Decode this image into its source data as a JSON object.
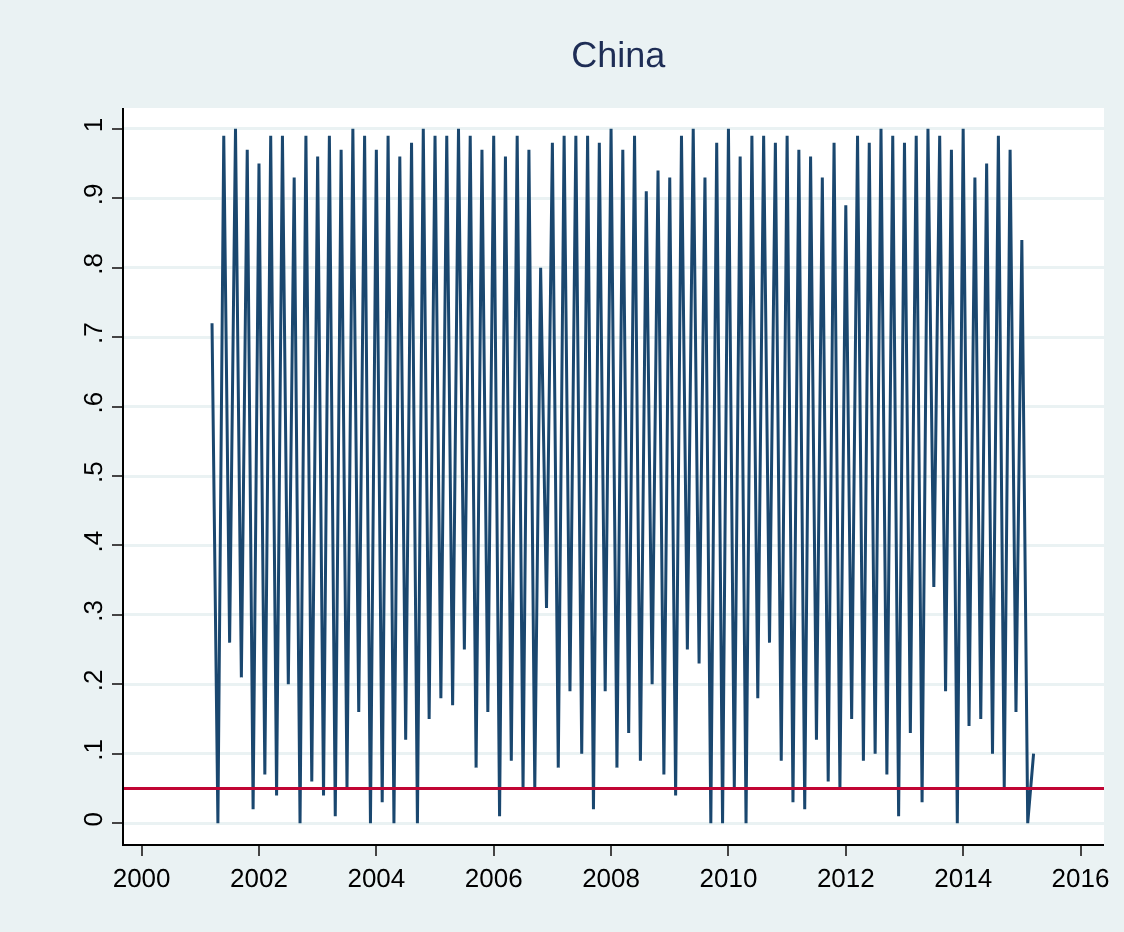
{
  "chart_data": {
    "type": "line",
    "title": "China",
    "x": [
      2001.2,
      2001.3,
      2001.4,
      2001.5,
      2001.6,
      2001.7,
      2001.8,
      2001.9,
      2002.0,
      2002.1,
      2002.2,
      2002.3,
      2002.4,
      2002.5,
      2002.6,
      2002.7,
      2002.8,
      2002.9,
      2003.0,
      2003.1,
      2003.2,
      2003.3,
      2003.4,
      2003.5,
      2003.6,
      2003.7,
      2003.8,
      2003.9,
      2004.0,
      2004.1,
      2004.2,
      2004.3,
      2004.4,
      2004.5,
      2004.6,
      2004.7,
      2004.8,
      2004.9,
      2005.0,
      2005.1,
      2005.2,
      2005.3,
      2005.4,
      2005.5,
      2005.6,
      2005.7,
      2005.8,
      2005.9,
      2006.0,
      2006.1,
      2006.2,
      2006.3,
      2006.4,
      2006.5,
      2006.6,
      2006.7,
      2006.8,
      2006.9,
      2007.0,
      2007.1,
      2007.2,
      2007.3,
      2007.4,
      2007.5,
      2007.6,
      2007.7,
      2007.8,
      2007.9,
      2008.0,
      2008.1,
      2008.2,
      2008.3,
      2008.4,
      2008.5,
      2008.6,
      2008.7,
      2008.8,
      2008.9,
      2009.0,
      2009.1,
      2009.2,
      2009.3,
      2009.4,
      2009.5,
      2009.6,
      2009.7,
      2009.8,
      2009.9,
      2010.0,
      2010.1,
      2010.2,
      2010.3,
      2010.4,
      2010.5,
      2010.6,
      2010.7,
      2010.8,
      2010.9,
      2011.0,
      2011.1,
      2011.2,
      2011.3,
      2011.4,
      2011.5,
      2011.6,
      2011.7,
      2011.8,
      2011.9,
      2012.0,
      2012.1,
      2012.2,
      2012.3,
      2012.4,
      2012.5,
      2012.6,
      2012.7,
      2012.8,
      2012.9,
      2013.0,
      2013.1,
      2013.2,
      2013.3,
      2013.4,
      2013.5,
      2013.6,
      2013.7,
      2013.8,
      2013.9,
      2014.0,
      2014.1,
      2014.2,
      2014.3,
      2014.4,
      2014.5,
      2014.6,
      2014.7,
      2014.8,
      2014.9,
      2015.0,
      2015.1,
      2015.2
    ],
    "series": [
      {
        "color": "#1a476f",
        "values": [
          0.72,
          0.0,
          0.99,
          0.26,
          1.0,
          0.21,
          0.97,
          0.02,
          0.95,
          0.07,
          0.99,
          0.04,
          0.99,
          0.2,
          0.93,
          0.0,
          0.99,
          0.06,
          0.96,
          0.04,
          0.99,
          0.01,
          0.97,
          0.05,
          1.0,
          0.16,
          0.99,
          0.0,
          0.97,
          0.03,
          0.99,
          0.0,
          0.96,
          0.12,
          0.98,
          0.0,
          1.0,
          0.15,
          0.99,
          0.18,
          0.99,
          0.17,
          1.0,
          0.25,
          0.99,
          0.08,
          0.97,
          0.16,
          0.99,
          0.01,
          0.96,
          0.09,
          0.99,
          0.05,
          0.97,
          0.05,
          0.8,
          0.31,
          0.98,
          0.08,
          0.99,
          0.19,
          0.99,
          0.1,
          0.99,
          0.02,
          0.98,
          0.19,
          1.0,
          0.08,
          0.97,
          0.13,
          0.99,
          0.09,
          0.91,
          0.2,
          0.94,
          0.07,
          0.93,
          0.04,
          0.99,
          0.25,
          1.0,
          0.23,
          0.93,
          0.0,
          0.98,
          0.0,
          1.0,
          0.05,
          0.96,
          0.0,
          0.99,
          0.18,
          0.99,
          0.26,
          0.98,
          0.09,
          0.99,
          0.03,
          0.97,
          0.02,
          0.96,
          0.12,
          0.93,
          0.06,
          0.98,
          0.05,
          0.89,
          0.15,
          0.99,
          0.09,
          0.98,
          0.1,
          1.0,
          0.07,
          0.99,
          0.01,
          0.98,
          0.13,
          0.99,
          0.03,
          1.0,
          0.34,
          0.99,
          0.19,
          0.97,
          0.0,
          1.0,
          0.14,
          0.93,
          0.15,
          0.95,
          0.1,
          0.99,
          0.05,
          0.97,
          0.16,
          0.84,
          0.0,
          0.1
        ]
      }
    ],
    "xlim": [
      1999.7,
      2016.4
    ],
    "xticks": [
      2000,
      2002,
      2004,
      2006,
      2008,
      2010,
      2012,
      2014,
      2016
    ],
    "ylim": [
      -0.03,
      1.03
    ],
    "yticks": [
      {
        "value": 0,
        "label": "0"
      },
      {
        "value": 0.1,
        "label": ".1"
      },
      {
        "value": 0.2,
        "label": ".2"
      },
      {
        "value": 0.3,
        "label": ".3"
      },
      {
        "value": 0.4,
        "label": ".4"
      },
      {
        "value": 0.5,
        "label": ".5"
      },
      {
        "value": 0.6,
        "label": ".6"
      },
      {
        "value": 0.7,
        "label": ".7"
      },
      {
        "value": 0.8,
        "label": ".8"
      },
      {
        "value": 0.9,
        "label": ".9"
      },
      {
        "value": 1,
        "label": "1"
      }
    ],
    "ref_lines": [
      {
        "axis": "y",
        "value": 0.05,
        "color": "#c10534"
      }
    ],
    "grid": "y",
    "marker": "none",
    "line_style": "solid"
  }
}
